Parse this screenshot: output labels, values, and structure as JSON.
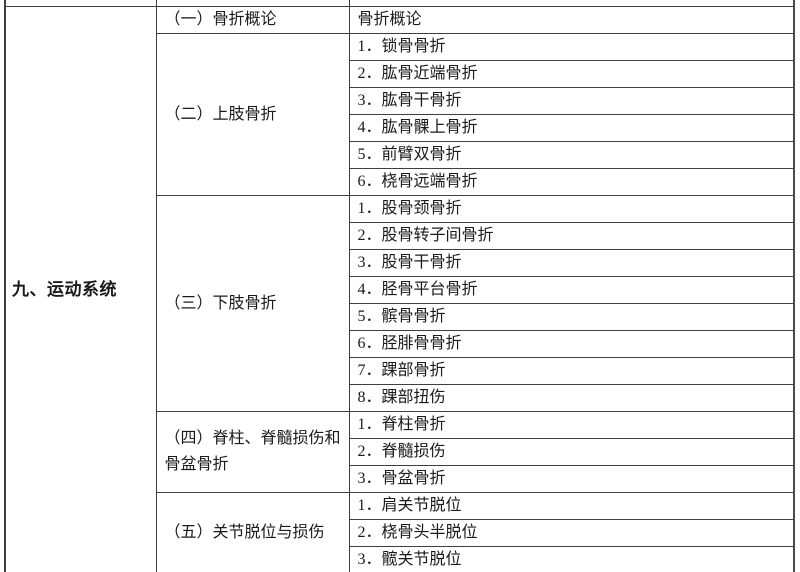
{
  "page": {
    "background_color": "#ffffff",
    "text_color": "#1a1a1a",
    "grid_line_color": "#3f3f3f",
    "outer_bottom_border_color": "#1f1f1f"
  },
  "table": {
    "system_label": "九、运动系统",
    "sections": [
      {
        "label": "（一）骨折概论",
        "items": [
          "骨折概论"
        ]
      },
      {
        "label": "（二）上肢骨折",
        "items": [
          "1．锁骨骨折",
          "2．肱骨近端骨折",
          "3．肱骨干骨折",
          "4．肱骨髁上骨折",
          "5．前臂双骨折",
          "6．桡骨远端骨折"
        ]
      },
      {
        "label": "（三）下肢骨折",
        "items": [
          "1．股骨颈骨折",
          "2．股骨转子间骨折",
          "3．股骨干骨折",
          "4．胫骨平台骨折",
          "5．髌骨骨折",
          "6．胫腓骨骨折",
          "7．踝部骨折",
          "8．踝部扭伤"
        ]
      },
      {
        "label": "（四）脊柱、脊髓损伤和骨盆骨折",
        "items": [
          "1．脊柱骨折",
          "2．脊髓损伤",
          "3．骨盆骨折"
        ]
      },
      {
        "label": "（五）关节脱位与损伤",
        "items": [
          "1．肩关节脱位",
          "2．桡骨头半脱位",
          "3．髋关节脱位"
        ]
      }
    ]
  }
}
